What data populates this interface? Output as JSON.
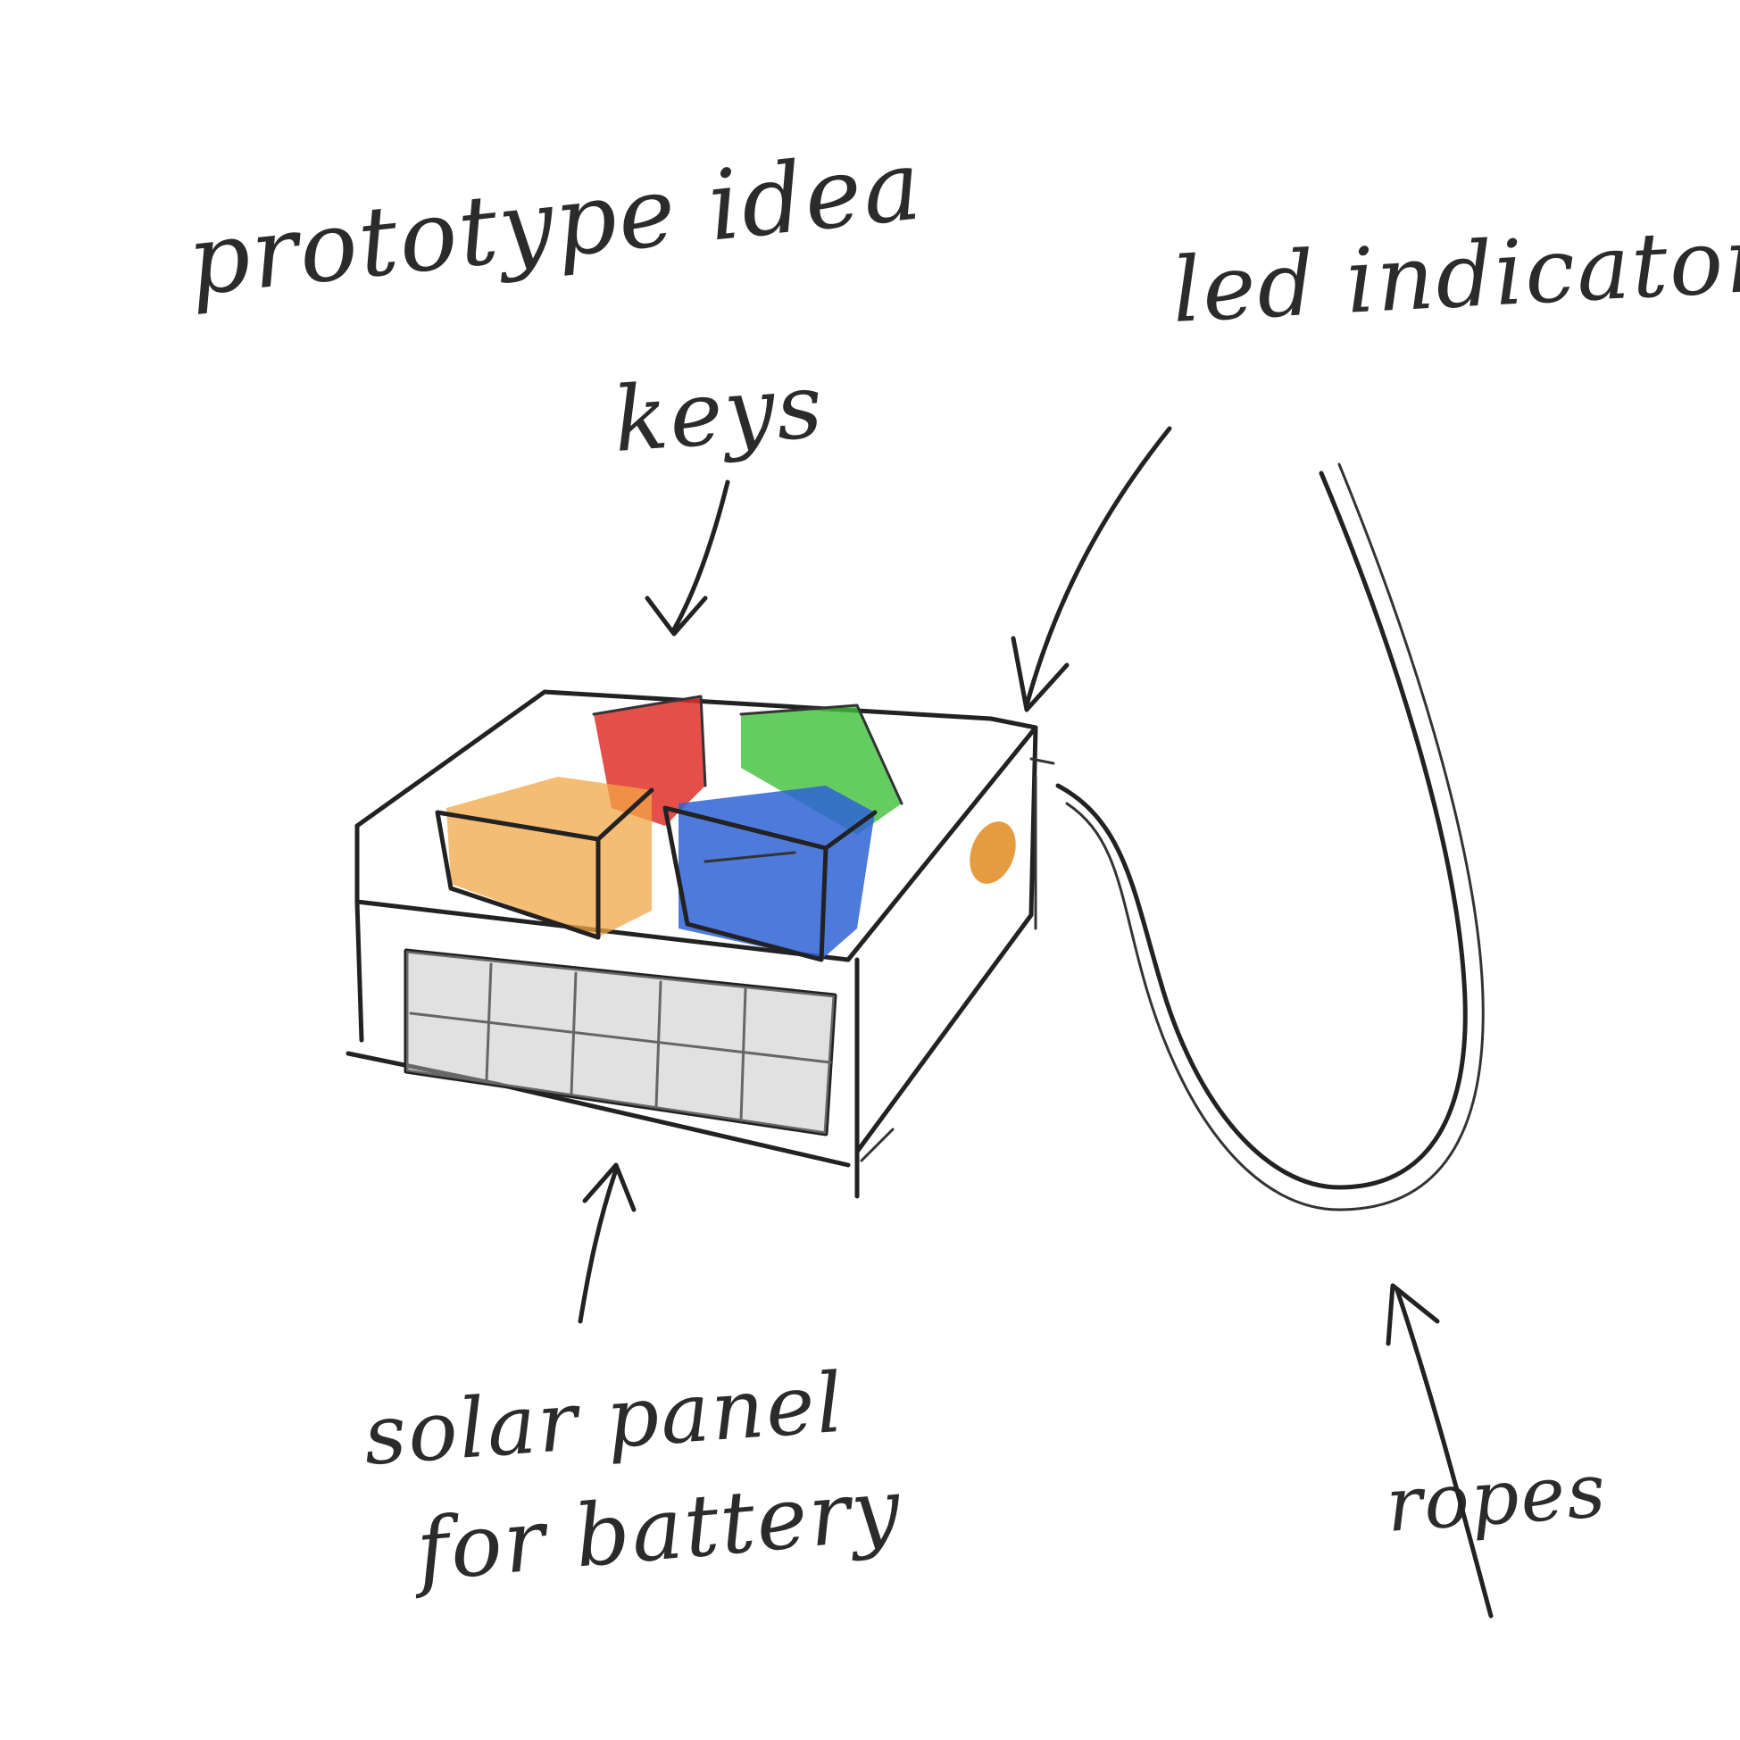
{
  "labels": {
    "title": "prototype idea",
    "keys": "keys",
    "led": "led indicator",
    "solar_line1": "solar panel",
    "solar_line2": "for battery",
    "ropes": "ropes"
  },
  "colors": {
    "key_red": "#e0302a",
    "key_green": "#3fbf3a",
    "key_orange": "#f2a545",
    "key_blue": "#2f63d6",
    "led_orange": "#e08a1e",
    "pencil": "#222222",
    "panel": "#bdbdbd"
  }
}
